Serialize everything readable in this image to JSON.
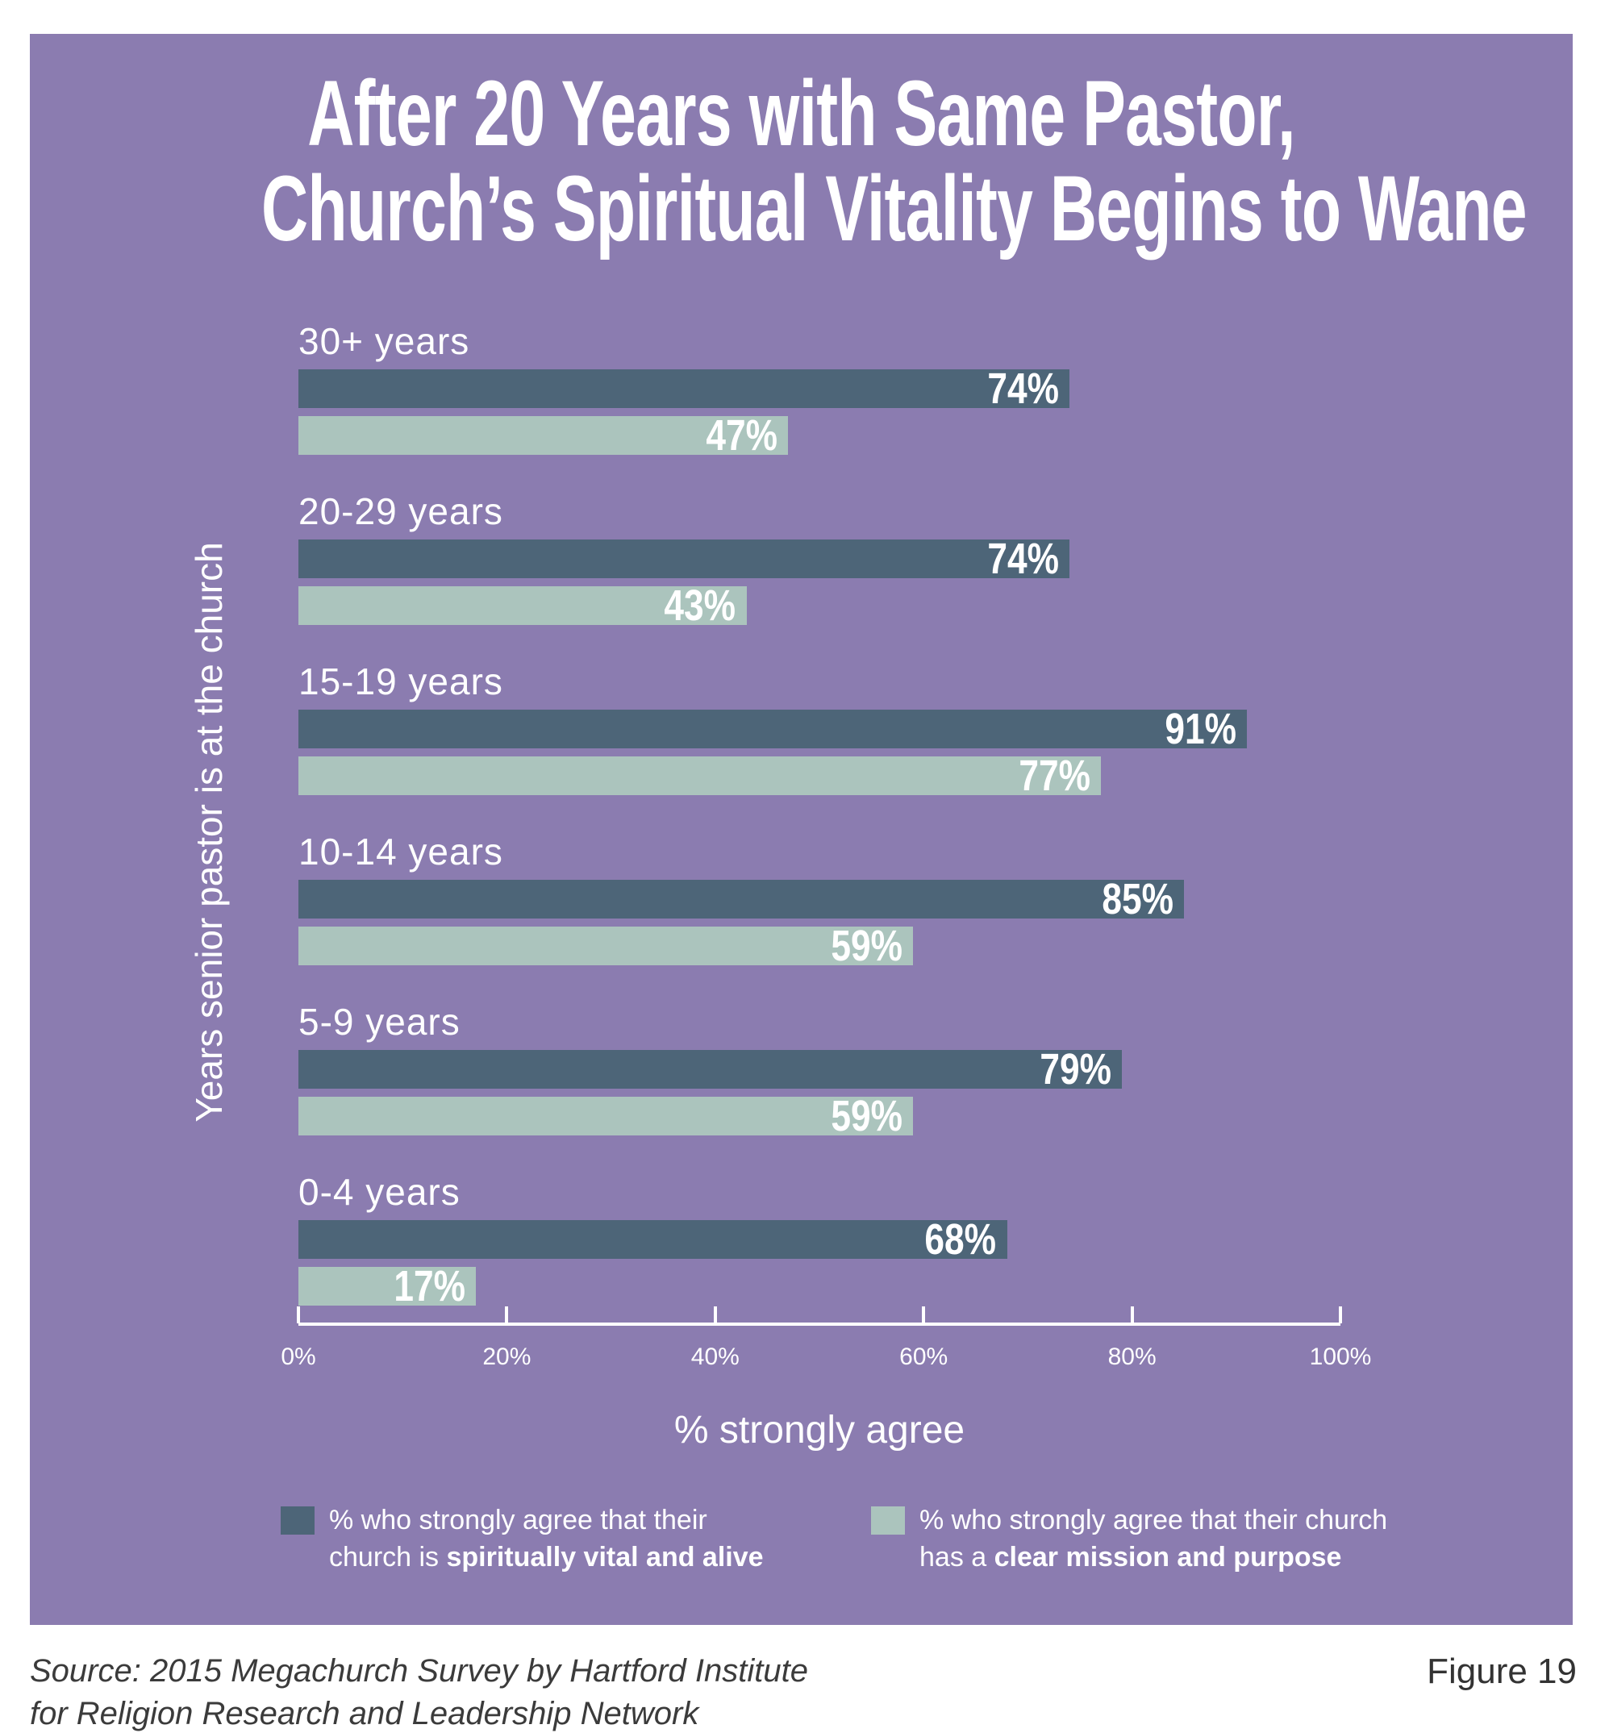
{
  "header": {
    "title_line1": "After 20 Years with Same Pastor,",
    "title_line2": "Church’s Spiritual Vitality Begins to Wane"
  },
  "chart_data": {
    "type": "bar",
    "orientation": "horizontal",
    "title": "After 20 Years with Same Pastor, Church’s Spiritual Vitality Begins to Wane",
    "categories": [
      "30+ years",
      "20-29 years",
      "15-19 years",
      "10-14 years",
      "5-9 years",
      "0-4 years"
    ],
    "series": [
      {
        "name": "% who strongly agree that their church is spiritually vital and alive",
        "color": "#4d6578",
        "values": [
          74,
          74,
          91,
          85,
          79,
          68
        ]
      },
      {
        "name": "% who strongly agree that their church has a clear mission and purpose",
        "color": "#abc4bd",
        "values": [
          47,
          43,
          77,
          59,
          59,
          17
        ]
      }
    ],
    "value_label_suffix": "%",
    "xlabel": "% strongly agree",
    "ylabel": "Years senior pastor is at the church",
    "xlim": [
      0,
      100
    ],
    "xticks": [
      "0%",
      "20%",
      "40%",
      "60%",
      "80%",
      "100%"
    ],
    "grid": false,
    "legend_position": "bottom"
  },
  "legend": {
    "items": [
      {
        "swatch_color": "#4d6578",
        "line1": "% who strongly agree that their",
        "line2_prefix": "church is ",
        "line2_bold": "spiritually vital and alive"
      },
      {
        "swatch_color": "#abc4bd",
        "line1": "% who strongly agree that their church",
        "line2_prefix": "has a ",
        "line2_bold": "clear mission and purpose"
      }
    ]
  },
  "footer": {
    "source_line1": "Source: 2015 Megachurch Survey by Hartford Institute",
    "source_line2": "for Religion Research and Leadership Network",
    "figure_label": "Figure 19"
  },
  "colors": {
    "background": "#8b7cb0",
    "bar_dark": "#4d6578",
    "bar_light": "#abc4bd",
    "text": "#ffffff",
    "footer_text": "#3b3b3b"
  }
}
